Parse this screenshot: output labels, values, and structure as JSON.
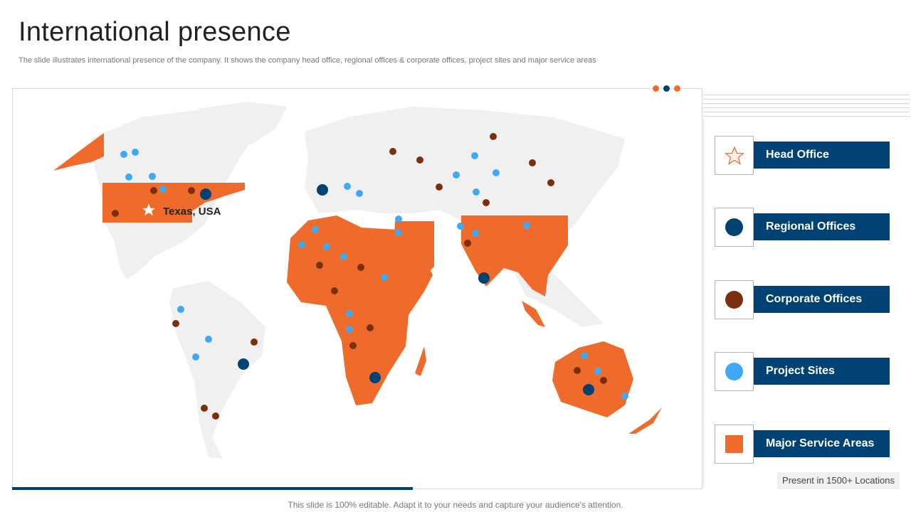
{
  "title": "International presence",
  "subtitle": "The slide illustrates international presence of the company. It shows the company head office, regional offices & corporate offices, project sites and major service areas",
  "colors": {
    "navy": "#004274",
    "orange": "#EE6B2B",
    "brown": "#7A300E",
    "light_blue": "#3FA9F5",
    "land": "#F0F0F0"
  },
  "map": {
    "head_office_label": "Texas, USA"
  },
  "legend": [
    {
      "label": "Head Office",
      "symbol": "star-icon"
    },
    {
      "label": "Regional Offices",
      "symbol": "navy-circle-icon"
    },
    {
      "label": "Corporate Offices",
      "symbol": "brown-circle-icon"
    },
    {
      "label": "Project Sites",
      "symbol": "light-blue-circle-icon"
    },
    {
      "label": "Major Service Areas",
      "symbol": "orange-square-icon"
    }
  ],
  "present_label": "Present in 1500+ Locations",
  "footer": "This slide is 100% editable. Adapt it to your needs and capture your audience's attention."
}
